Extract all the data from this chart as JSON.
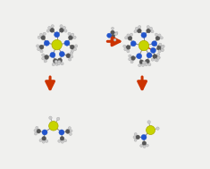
{
  "background_color": "#f0f0ee",
  "arrow_color": "#cc3300",
  "ti_color": "#c8d400",
  "n_color": "#2255cc",
  "c_color": "#555555",
  "h_color": "#cccccc",
  "ti_r": 0.03,
  "n_r": 0.016,
  "c_r": 0.014,
  "h_r": 0.009,
  "bond_lw": 0.7,
  "bond_color": "#888888"
}
